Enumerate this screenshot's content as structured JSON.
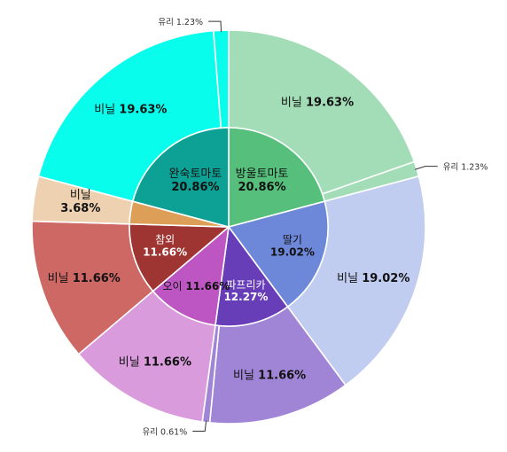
{
  "chart_data": {
    "type": "pie",
    "subtype": "sunburst",
    "title": "",
    "inner": [
      {
        "label": "방울토마토",
        "value": 20.86,
        "value_label": "20.86%",
        "color": "#55bf7b",
        "text_color": "#111111"
      },
      {
        "label": "딸기",
        "value": 19.02,
        "value_label": "19.02%",
        "color": "#6d88d9",
        "text_color": "#111111"
      },
      {
        "label": "파프리카",
        "value": 12.27,
        "value_label": "12.27%",
        "color": "#673db8",
        "text_color": "#ffffff"
      },
      {
        "label": "오이",
        "value": 11.66,
        "value_label": "11.66%",
        "color": "#bd55c2",
        "text_color": "#111111"
      },
      {
        "label": "참외",
        "value": 11.66,
        "value_label": "11.66%",
        "color": "#9e3532",
        "text_color": "#ffffff"
      },
      {
        "label": "",
        "value": 3.68,
        "value_label": "",
        "color": "#dd9f58",
        "text_color": "#111111"
      },
      {
        "label": "완숙토마토",
        "value": 20.86,
        "value_label": "20.86%",
        "color": "#0da195",
        "text_color": "#111111"
      }
    ],
    "outer": [
      {
        "label": "비닐",
        "value": 19.63,
        "value_label": "19.63%",
        "color": "#a3ddb8",
        "parent": "방울토마토"
      },
      {
        "label": "유리",
        "value": 1.23,
        "value_label": "1.23%",
        "color": "#a3ddb8",
        "parent": "방울토마토",
        "callout": true
      },
      {
        "label": "비닐",
        "value": 19.02,
        "value_label": "19.02%",
        "color": "#c0ccf0",
        "parent": "딸기"
      },
      {
        "label": "비닐",
        "value": 11.66,
        "value_label": "11.66%",
        "color": "#a084d6",
        "parent": "파프리카"
      },
      {
        "label": "유리",
        "value": 0.61,
        "value_label": "0.61%",
        "color": "#a084d6",
        "parent": "파프리카",
        "callout": true
      },
      {
        "label": "비닐",
        "value": 11.66,
        "value_label": "11.66%",
        "color": "#d99bdc",
        "parent": "오이"
      },
      {
        "label": "비닐",
        "value": 11.66,
        "value_label": "11.66%",
        "color": "#cd6865",
        "parent": "참외"
      },
      {
        "label": "비닐",
        "value": 3.68,
        "value_label": "3.68%",
        "color": "#eed1b0",
        "parent": "",
        "stacked_label": true
      },
      {
        "label": "비닐",
        "value": 19.63,
        "value_label": "19.63%",
        "color": "#09fdec",
        "parent": "완숙토마토"
      },
      {
        "label": "유리",
        "value": 1.23,
        "value_label": "1.23%",
        "color": "#09fdec",
        "parent": "완숙토마토",
        "callout": true
      }
    ]
  }
}
